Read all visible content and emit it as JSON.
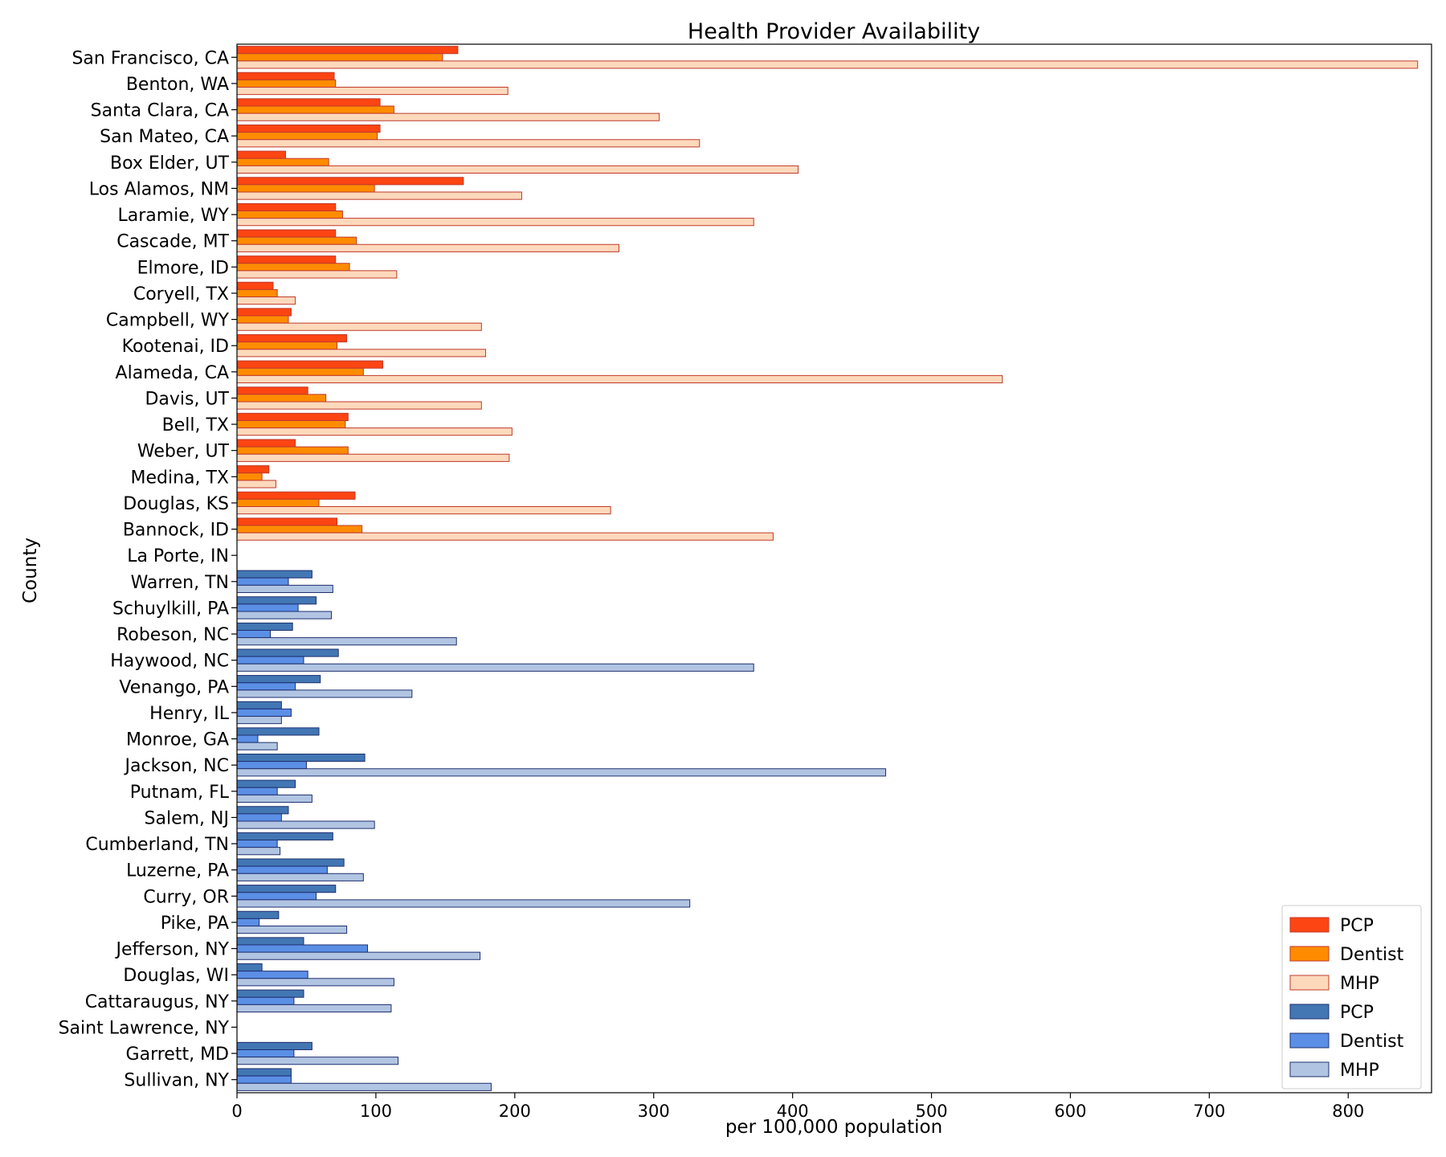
{
  "chart_data": {
    "type": "bar",
    "orientation": "horizontal",
    "title": "Health Provider Availability",
    "xlabel": "per 100,000 population",
    "ylabel": "County",
    "xlim": [
      0,
      860
    ],
    "xticks": [
      0,
      100,
      200,
      300,
      400,
      500,
      600,
      700,
      800
    ],
    "grid": false,
    "legend_position": "lower right",
    "categories": [
      "San Francisco, CA",
      "Benton, WA",
      "Santa Clara, CA",
      "San Mateo, CA",
      "Box Elder, UT",
      "Los Alamos, NM",
      "Laramie, WY",
      "Cascade, MT",
      "Elmore, ID",
      "Coryell, TX",
      "Campbell, WY",
      "Kootenai, ID",
      "Alameda, CA",
      "Davis, UT",
      "Bell, TX",
      "Weber, UT",
      "Medina, TX",
      "Douglas, KS",
      "Bannock, ID",
      "La Porte, IN",
      "Warren, TN",
      "Schuylkill, PA",
      "Robeson, NC",
      "Haywood, NC",
      "Venango, PA",
      "Henry, IL",
      "Monroe, GA",
      "Jackson, NC",
      "Putnam, FL",
      "Salem, NJ",
      "Cumberland, TN",
      "Luzerne, PA",
      "Curry, OR",
      "Pike, PA",
      "Jefferson, NY",
      "Douglas, WI",
      "Cattaraugus, NY",
      "Saint Lawrence, NY",
      "Garrett, MD",
      "Sullivan, NY"
    ],
    "series": [
      {
        "name": "PCP",
        "group": "top",
        "color": "#fc4513",
        "values": [
          159,
          70,
          103,
          103,
          35,
          163,
          71,
          71,
          71,
          26,
          39,
          79,
          105,
          51,
          80,
          42,
          23,
          85,
          72,
          0,
          null,
          null,
          null,
          null,
          null,
          null,
          null,
          null,
          null,
          null,
          null,
          null,
          null,
          null,
          null,
          null,
          null,
          null,
          null,
          null
        ]
      },
      {
        "name": "Dentist",
        "group": "top",
        "color": "#ff8c00",
        "values": [
          148,
          71,
          113,
          101,
          66,
          99,
          76,
          86,
          81,
          29,
          37,
          72,
          91,
          64,
          78,
          80,
          18,
          59,
          90,
          0,
          null,
          null,
          null,
          null,
          null,
          null,
          null,
          null,
          null,
          null,
          null,
          null,
          null,
          null,
          null,
          null,
          null,
          null,
          null,
          null
        ]
      },
      {
        "name": "MHP",
        "group": "top",
        "color": "#fdd9bc",
        "values": [
          850,
          195,
          304,
          333,
          404,
          205,
          372,
          275,
          115,
          42,
          176,
          179,
          551,
          176,
          198,
          196,
          28,
          269,
          386,
          0,
          null,
          null,
          null,
          null,
          null,
          null,
          null,
          null,
          null,
          null,
          null,
          null,
          null,
          null,
          null,
          null,
          null,
          null,
          null,
          null
        ]
      },
      {
        "name": "PCP",
        "group": "bottom",
        "color": "#4277b4",
        "values": [
          null,
          null,
          null,
          null,
          null,
          null,
          null,
          null,
          null,
          null,
          null,
          null,
          null,
          null,
          null,
          null,
          null,
          null,
          null,
          0,
          54,
          57,
          40,
          73,
          60,
          32,
          59,
          92,
          42,
          37,
          69,
          77,
          71,
          30,
          48,
          18,
          48,
          0,
          54,
          39
        ]
      },
      {
        "name": "Dentist",
        "group": "bottom",
        "color": "#5b8fe6",
        "values": [
          null,
          null,
          null,
          null,
          null,
          null,
          null,
          null,
          null,
          null,
          null,
          null,
          null,
          null,
          null,
          null,
          null,
          null,
          null,
          0,
          37,
          44,
          24,
          48,
          42,
          39,
          15,
          50,
          29,
          32,
          29,
          65,
          57,
          16,
          94,
          51,
          41,
          0,
          41,
          39
        ]
      },
      {
        "name": "MHP",
        "group": "bottom",
        "color": "#b1c5e3",
        "values": [
          null,
          null,
          null,
          null,
          null,
          null,
          null,
          null,
          null,
          null,
          null,
          null,
          null,
          null,
          null,
          null,
          null,
          null,
          null,
          0,
          69,
          68,
          158,
          372,
          126,
          32,
          29,
          467,
          54,
          99,
          31,
          91,
          326,
          79,
          175,
          113,
          111,
          0,
          116,
          183
        ]
      }
    ],
    "edge_colors": {
      "top": "#c0392b",
      "bottom": "#1f2f6e"
    }
  }
}
